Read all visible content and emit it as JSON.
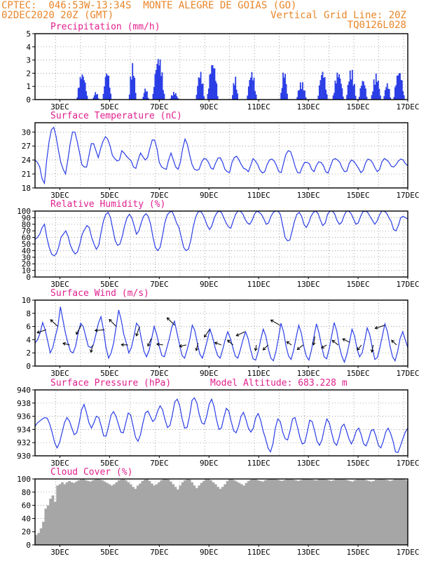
{
  "header": {
    "line1_left": "CPTEC:  046:53W-13:34S  MONTE ALEGRE DE GOIAS (GO)",
    "line2_left": "02DEC2020 20Z (GMT)",
    "line2_right": "Vertical Grid Line: 20Z",
    "line3_right": "TQ0126L028"
  },
  "colors": {
    "title": "#e0208e",
    "header": "#e8862a",
    "series": "#2b3ee6",
    "cloud": "#a6a6a6",
    "grid": "#7f7f7f"
  },
  "chart_data": [
    {
      "type": "bar",
      "title": "Precipitation (mm/h)",
      "x_day_labels": [
        "3DEC",
        "5DEC",
        "7DEC",
        "9DEC",
        "11DEC",
        "13DEC",
        "15DEC",
        "17DEC"
      ],
      "ylim": [
        0,
        5
      ],
      "yticks": [
        0,
        1,
        2,
        3,
        4,
        5
      ],
      "grid": true,
      "bursts": [
        [
          3.7,
          4.1,
          2.1
        ],
        [
          4.35,
          4.55,
          0.6
        ],
        [
          4.75,
          5.05,
          2.3
        ],
        [
          5.8,
          6.05,
          2.8
        ],
        [
          6.35,
          6.55,
          0.9
        ],
        [
          6.75,
          7.2,
          3.4
        ],
        [
          7.45,
          7.75,
          0.6
        ],
        [
          8.5,
          8.8,
          2.2
        ],
        [
          8.95,
          9.35,
          3.0
        ],
        [
          9.95,
          10.15,
          1.8
        ],
        [
          10.55,
          10.9,
          2.2
        ],
        [
          11.9,
          12.15,
          2.3
        ],
        [
          12.55,
          12.9,
          1.4
        ],
        [
          13.4,
          13.75,
          2.3
        ],
        [
          14.0,
          14.4,
          2.2
        ],
        [
          14.55,
          14.9,
          2.4
        ],
        [
          15.05,
          15.35,
          1.6
        ],
        [
          15.55,
          15.9,
          2.0
        ],
        [
          16.05,
          16.3,
          1.3
        ],
        [
          16.45,
          16.85,
          2.3
        ]
      ]
    },
    {
      "type": "line",
      "title": "Surface Temperature (nC)",
      "x_day_labels": [
        "3DEC",
        "5DEC",
        "7DEC",
        "9DEC",
        "11DEC",
        "13DEC",
        "15DEC",
        "17DEC"
      ],
      "ylim": [
        18,
        32
      ],
      "yticks": [
        18,
        21,
        24,
        27,
        30
      ],
      "grid": true,
      "values": [
        24,
        23.5,
        22.5,
        20,
        19,
        24,
        28,
        30.5,
        31,
        29,
        26,
        23.5,
        22,
        21,
        24,
        27.5,
        30,
        30,
        28,
        25.5,
        23,
        22.5,
        22.5,
        25,
        27.5,
        27.5,
        26,
        24.5,
        26.5,
        28,
        29,
        28.5,
        27,
        25,
        24.3,
        23.8,
        24,
        26,
        25.5,
        24.8,
        24.3,
        23.8,
        22.5,
        22.2,
        24,
        25.5,
        24.7,
        24,
        24.5,
        26.5,
        28.3,
        28.3,
        26.5,
        23.5,
        22.5,
        22.2,
        22,
        24,
        25.5,
        24,
        22.5,
        22,
        23.5,
        26.5,
        28.5,
        27.3,
        25,
        23,
        22,
        21.8,
        22,
        23.5,
        24.3,
        24.2,
        23.5,
        22.3,
        22,
        23.3,
        24.4,
        24.5,
        23.5,
        22,
        21.5,
        21.3,
        23.5,
        24.5,
        24.8,
        24,
        23,
        22.2,
        22,
        21.5,
        22.8,
        24.3,
        23.8,
        23,
        21.8,
        21.2,
        21.5,
        23,
        24,
        24.2,
        23.8,
        22.8,
        21.5,
        21.3,
        23.3,
        25.2,
        26,
        25.8,
        24.3,
        22.5,
        21.3,
        21.2,
        22.5,
        23.5,
        23.5,
        23.2,
        22,
        21.5,
        22.8,
        23.6,
        23.5,
        22.8,
        21.5,
        21.2,
        22.6,
        24,
        24.3,
        24,
        23.5,
        22.3,
        21.5,
        21.6,
        23.3,
        24,
        23.7,
        23,
        22.2,
        21.3,
        21.8,
        23.4,
        24.2,
        24,
        23.4,
        22.3,
        21.5,
        22,
        23.6,
        24.3,
        24,
        23.5,
        22.6,
        22.5,
        23,
        23.8,
        24.2,
        24,
        23.2,
        22.8
      ]
    },
    {
      "type": "line",
      "title": "Relative Humidity (%)",
      "x_day_labels": [
        "3DEC",
        "5DEC",
        "7DEC",
        "9DEC",
        "11DEC",
        "13DEC",
        "15DEC",
        "17DEC"
      ],
      "ylim": [
        0,
        100
      ],
      "yticks": [
        0,
        10,
        20,
        30,
        40,
        50,
        60,
        70,
        80,
        90,
        100
      ],
      "grid": true,
      "values": [
        57,
        60,
        65,
        75,
        80,
        60,
        45,
        35,
        32,
        35,
        45,
        60,
        65,
        70,
        62,
        48,
        40,
        35,
        38,
        50,
        65,
        72,
        78,
        75,
        60,
        50,
        42,
        48,
        68,
        85,
        95,
        98,
        90,
        72,
        55,
        48,
        50,
        62,
        78,
        90,
        95,
        90,
        78,
        65,
        70,
        82,
        92,
        96,
        92,
        80,
        60,
        45,
        40,
        45,
        62,
        82,
        94,
        98,
        100,
        92,
        82,
        75,
        60,
        45,
        40,
        42,
        55,
        75,
        90,
        98,
        100,
        96,
        88,
        78,
        72,
        78,
        90,
        97,
        100,
        98,
        90,
        82,
        76,
        74,
        85,
        95,
        100,
        100,
        96,
        88,
        82,
        80,
        86,
        95,
        100,
        98,
        95,
        88,
        80,
        82,
        92,
        98,
        100,
        100,
        95,
        78,
        60,
        55,
        56,
        70,
        85,
        95,
        98,
        92,
        80,
        75,
        82,
        92,
        98,
        100,
        96,
        86,
        78,
        82,
        95,
        100,
        100,
        96,
        86,
        80,
        83,
        93,
        100,
        100,
        96,
        88,
        80,
        82,
        92,
        99,
        100,
        98,
        92,
        86,
        80,
        85,
        94,
        100,
        100,
        97,
        90,
        84,
        72,
        70,
        78,
        90,
        92,
        90,
        88
      ]
    },
    {
      "type": "line",
      "title": "Surface Wind (m/s)",
      "x_day_labels": [
        "3DEC",
        "5DEC",
        "7DEC",
        "9DEC",
        "11DEC",
        "13DEC",
        "15DEC",
        "17DEC"
      ],
      "ylim": [
        0,
        10
      ],
      "yticks": [
        0,
        2,
        4,
        6,
        8,
        10
      ],
      "grid": true,
      "values": [
        3.5,
        4,
        5,
        6.6,
        5.5,
        3.8,
        2,
        2.8,
        4.5,
        6,
        9,
        7,
        5,
        3.5,
        2.2,
        2,
        3,
        5,
        6.5,
        6,
        4.5,
        3,
        2.8,
        3.2,
        4.8,
        6.5,
        7.5,
        5.5,
        2.8,
        1.2,
        2,
        3.5,
        6,
        8.5,
        7,
        4.8,
        3.5,
        2,
        2.8,
        4.5,
        6.5,
        6,
        4,
        2.2,
        1.4,
        2.4,
        4.2,
        6,
        4.8,
        3,
        1.6,
        1.4,
        2.8,
        4.2,
        6,
        6.8,
        5,
        3.2,
        1.6,
        1.2,
        2.5,
        4,
        6.2,
        5.4,
        3.5,
        1.8,
        1.2,
        2.5,
        4,
        5.6,
        4.4,
        2.8,
        1.6,
        1.2,
        2.5,
        4,
        5.2,
        4.2,
        2.8,
        1.5,
        1.2,
        2.5,
        4,
        5.2,
        4.2,
        2.5,
        1.1,
        0.9,
        2.2,
        4,
        5.6,
        4.6,
        2.6,
        1.2,
        0.8,
        2.2,
        4.2,
        6.5,
        5.2,
        3,
        1.5,
        1,
        2.4,
        4.4,
        6.2,
        5,
        3,
        1.5,
        0.9,
        2.4,
        4.5,
        6.4,
        5,
        3,
        1.4,
        1.1,
        2.6,
        4.6,
        6.6,
        5.3,
        3,
        1.5,
        0.6,
        1.8,
        3.6,
        5.6,
        4.6,
        2.6,
        1.4,
        2,
        3.8,
        5.8,
        4.8,
        2.8,
        1,
        1.3,
        2.8,
        4.6,
        6.4,
        5.2,
        3,
        1.4,
        0.8,
        2.2,
        4.2,
        5.2,
        4,
        2.8
      ]
    },
    {
      "type": "line",
      "title": "Surface Pressure (hPa)",
      "annotation": "Model Altitude: 683.228 m",
      "x_day_labels": [
        "3DEC",
        "5DEC",
        "7DEC",
        "9DEC",
        "11DEC",
        "13DEC",
        "15DEC",
        "17DEC"
      ],
      "ylim": [
        930,
        940
      ],
      "yticks": [
        930,
        932,
        934,
        936,
        938,
        940
      ],
      "grid": true,
      "values": [
        934.5,
        935,
        935.3,
        935.6,
        935.8,
        935.7,
        934.8,
        933.5,
        932,
        931.2,
        932,
        933.5,
        935,
        935.8,
        935.3,
        934.2,
        933.2,
        933.5,
        935,
        937,
        937.8,
        936.5,
        935,
        934.2,
        935,
        936,
        935.8,
        934.5,
        933,
        933,
        934.5,
        936.2,
        936.7,
        936,
        934.8,
        933.6,
        933.5,
        935,
        936.5,
        936.2,
        934.5,
        932.8,
        932.2,
        933.2,
        935,
        936.5,
        936.8,
        936,
        935.2,
        935.6,
        936.8,
        937.6,
        937,
        935.5,
        934.3,
        934.6,
        936.2,
        938.2,
        938.6,
        937.6,
        935.6,
        934.2,
        934.3,
        936,
        938.4,
        938.8,
        938,
        936.2,
        935,
        934.8,
        936,
        937.8,
        938.6,
        937.5,
        935.5,
        934,
        934.2,
        935.8,
        937.2,
        936.8,
        935.2,
        933.8,
        933.5,
        934.5,
        936,
        936.6,
        935.5,
        934.2,
        933.6,
        934.2,
        935.8,
        936.4,
        935.4,
        933.8,
        932.6,
        931.2,
        930.6,
        931.8,
        934.2,
        935.6,
        935.2,
        933.6,
        932.6,
        932.4,
        933.8,
        935.6,
        935.8,
        934.4,
        932.8,
        931.8,
        932,
        933.6,
        935.4,
        935.2,
        933.8,
        932.2,
        931.6,
        932.4,
        934.2,
        935.6,
        935,
        933.4,
        932,
        931.6,
        932.8,
        934.4,
        934.8,
        933.8,
        932.6,
        931.8,
        932.6,
        933.8,
        934.2,
        933.2,
        931.8,
        931.5,
        932.5,
        933.8,
        934,
        933,
        931.6,
        931.2,
        932.2,
        933.6,
        934.2,
        933.4,
        932.2,
        930.6,
        930.5,
        931.5,
        932.6,
        933.6,
        934.2
      ]
    },
    {
      "type": "bar",
      "title": "Cloud Cover (%)",
      "x_day_labels": [
        "3DEC",
        "5DEC",
        "7DEC",
        "9DEC",
        "11DEC",
        "13DEC",
        "15DEC",
        "17DEC"
      ],
      "ylim": [
        0,
        100
      ],
      "yticks": [
        0,
        20,
        40,
        60,
        80,
        100
      ],
      "grid": true,
      "values": [
        15,
        18,
        25,
        35,
        55,
        60,
        70,
        75,
        65,
        90,
        92,
        95,
        92,
        95,
        97,
        95,
        94,
        96,
        98,
        99,
        100,
        98,
        97,
        96,
        98,
        99,
        100,
        99,
        98,
        96,
        94,
        92,
        90,
        92,
        95,
        98,
        99,
        100,
        98,
        95,
        92,
        88,
        85,
        90,
        93,
        97,
        99,
        100,
        97,
        93,
        90,
        92,
        95,
        98,
        100,
        100,
        99,
        96,
        92,
        88,
        84,
        90,
        95,
        98,
        100,
        99,
        95,
        90,
        86,
        90,
        94,
        97,
        100,
        100,
        98,
        95,
        92,
        88,
        85,
        88,
        92,
        97,
        100,
        100,
        98,
        96,
        94,
        92,
        90,
        94,
        97,
        99,
        100,
        100,
        98,
        97,
        96,
        98,
        99,
        100,
        100,
        100,
        99,
        98,
        97,
        98,
        100,
        100,
        100,
        99,
        98,
        97,
        98,
        100,
        100,
        100,
        100,
        99,
        98,
        98,
        100,
        100,
        100,
        99,
        98,
        97,
        98,
        100,
        100,
        100,
        100,
        99,
        98,
        97,
        96,
        98,
        100,
        100,
        100,
        100,
        98,
        97,
        96,
        97,
        99,
        100,
        100,
        100,
        99,
        98,
        97,
        98,
        100,
        100,
        100,
        100,
        99,
        98
      ]
    }
  ]
}
